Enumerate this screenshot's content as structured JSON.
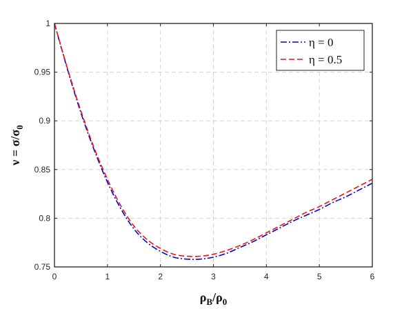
{
  "chart_data": {
    "type": "line",
    "xlabel": "ρB/ρ0",
    "ylabel": "ν =  σ/σ0",
    "xlim": [
      0,
      6
    ],
    "ylim": [
      0.75,
      1
    ],
    "xticks": [
      0,
      1,
      2,
      3,
      4,
      5,
      6
    ],
    "yticks": [
      0.75,
      0.8,
      0.85,
      0.9,
      0.95,
      1
    ],
    "xtick_labels": [
      "0",
      "1",
      "2",
      "3",
      "4",
      "5",
      "6"
    ],
    "ytick_labels": [
      "0.75",
      "0.8",
      "0.85",
      "0.9",
      "0.95",
      "1"
    ],
    "grid": true,
    "legend_position": "top-right",
    "series": [
      {
        "name": "η = 0",
        "color": "#0000cc",
        "dash": "dash-dot",
        "x": [
          0,
          0.25,
          0.5,
          0.75,
          1.0,
          1.25,
          1.5,
          1.75,
          2.0,
          2.25,
          2.5,
          2.75,
          3.0,
          3.25,
          3.5,
          3.75,
          4.0,
          4.25,
          4.5,
          4.75,
          5.0,
          5.25,
          5.5,
          5.75,
          6.0
        ],
        "y": [
          1.0,
          0.952,
          0.908,
          0.87,
          0.837,
          0.81,
          0.789,
          0.775,
          0.766,
          0.76,
          0.758,
          0.758,
          0.76,
          0.764,
          0.77,
          0.776,
          0.783,
          0.79,
          0.797,
          0.803,
          0.809,
          0.816,
          0.822,
          0.829,
          0.836
        ]
      },
      {
        "name": "η = 0.5",
        "color": "#ee1111",
        "dash": "dashed",
        "x": [
          0,
          0.25,
          0.5,
          0.75,
          1.0,
          1.25,
          1.5,
          1.75,
          2.0,
          2.25,
          2.5,
          2.75,
          3.0,
          3.25,
          3.5,
          3.75,
          4.0,
          4.25,
          4.5,
          4.75,
          5.0,
          5.25,
          5.5,
          5.75,
          6.0
        ],
        "y": [
          1.0,
          0.953,
          0.91,
          0.872,
          0.84,
          0.813,
          0.792,
          0.778,
          0.769,
          0.763,
          0.761,
          0.761,
          0.763,
          0.767,
          0.772,
          0.778,
          0.785,
          0.792,
          0.799,
          0.806,
          0.812,
          0.819,
          0.826,
          0.833,
          0.84
        ]
      }
    ]
  }
}
